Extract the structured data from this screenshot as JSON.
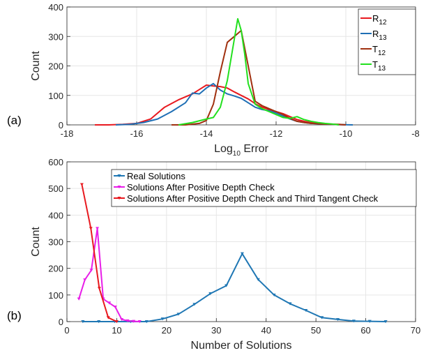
{
  "chart_data": [
    {
      "type": "line",
      "panel_label": "(a)",
      "xlabel": {
        "main": "Log",
        "sub": "10",
        "rest": " Error"
      },
      "ylabel": "Count",
      "xlim": [
        -18,
        -8
      ],
      "ylim": [
        0,
        400
      ],
      "xticks": [
        -18,
        -16,
        -14,
        -12,
        -10,
        -8
      ],
      "yticks": [
        0,
        100,
        200,
        300,
        400
      ],
      "grid": true,
      "legend_placement": "top-right",
      "series": [
        {
          "name": "R",
          "sub": "12",
          "color": "#e8191f",
          "x": [
            -17.2,
            -16.8,
            -16.4,
            -16.0,
            -15.6,
            -15.2,
            -14.8,
            -14.4,
            -14.2,
            -14.0,
            -13.8,
            -13.6,
            -13.4,
            -13.2,
            -13.0,
            -12.8,
            -12.6,
            -12.4,
            -12.2,
            -12.0,
            -11.8,
            -11.6,
            -11.4,
            -11.2,
            -11.0,
            -10.8,
            -10.6,
            -10.4,
            -10.2,
            -10.0
          ],
          "y": [
            0,
            0,
            2,
            5,
            20,
            60,
            85,
            105,
            120,
            135,
            132,
            130,
            125,
            112,
            100,
            88,
            72,
            60,
            52,
            45,
            38,
            28,
            18,
            12,
            8,
            4,
            3,
            2,
            1,
            0
          ]
        },
        {
          "name": "R",
          "sub": "13",
          "color": "#1f6fb5",
          "x": [
            -16.6,
            -16.2,
            -15.8,
            -15.4,
            -15.0,
            -14.6,
            -14.4,
            -14.2,
            -14.0,
            -13.8,
            -13.6,
            -13.4,
            -13.2,
            -13.0,
            -12.8,
            -12.6,
            -12.4,
            -12.2,
            -12.0,
            -11.8,
            -11.6,
            -11.4,
            -11.2,
            -11.0,
            -10.6,
            -10.2,
            -9.8
          ],
          "y": [
            0,
            2,
            8,
            20,
            45,
            75,
            108,
            105,
            125,
            140,
            118,
            105,
            98,
            90,
            75,
            60,
            52,
            48,
            40,
            30,
            20,
            12,
            8,
            5,
            3,
            1,
            0
          ]
        },
        {
          "name": "T",
          "sub": "12",
          "color": "#a0300f",
          "x": [
            -15.0,
            -14.6,
            -14.2,
            -14.0,
            -13.8,
            -13.6,
            -13.4,
            -13.2,
            -13.0,
            -12.8,
            -12.6,
            -12.4,
            -12.2,
            -12.0,
            -11.8,
            -11.6,
            -11.4,
            -11.2,
            -11.0,
            -10.6,
            -10.2,
            -10.0
          ],
          "y": [
            0,
            0,
            5,
            15,
            70,
            180,
            280,
            300,
            320,
            200,
            80,
            65,
            55,
            45,
            35,
            22,
            12,
            8,
            5,
            3,
            2,
            0
          ]
        },
        {
          "name": "T",
          "sub": "13",
          "color": "#22e01e",
          "x": [
            -14.8,
            -14.4,
            -14.0,
            -13.8,
            -13.6,
            -13.4,
            -13.2,
            -13.1,
            -13.0,
            -12.9,
            -12.8,
            -12.6,
            -12.4,
            -12.2,
            -12.0,
            -11.8,
            -11.6,
            -11.4,
            -11.2,
            -11.0,
            -10.8,
            -10.6,
            -10.4,
            -10.2
          ],
          "y": [
            0,
            8,
            20,
            25,
            60,
            150,
            290,
            360,
            320,
            240,
            140,
            70,
            55,
            45,
            35,
            25,
            22,
            28,
            18,
            12,
            8,
            5,
            3,
            0
          ]
        }
      ]
    },
    {
      "type": "line",
      "panel_label": "(b)",
      "xlabel": "Number of Solutions",
      "ylabel": "Count",
      "xlim": [
        0,
        70
      ],
      "ylim": [
        0,
        600
      ],
      "xticks": [
        0,
        10,
        20,
        30,
        40,
        50,
        60,
        70
      ],
      "yticks": [
        0,
        100,
        200,
        300,
        400,
        500,
        600
      ],
      "grid": true,
      "legend_placement": "top-right",
      "series": [
        {
          "name": "Real Solutions",
          "color": "#1f77b4",
          "x": [
            3.2,
            6.4,
            9.6,
            12.8,
            16.0,
            19.2,
            22.4,
            25.6,
            28.8,
            32.0,
            35.2,
            38.4,
            41.6,
            44.8,
            48.0,
            51.2,
            54.4,
            57.6,
            60.8,
            64.0
          ],
          "y": [
            0,
            0,
            0,
            0,
            0,
            10,
            28,
            65,
            105,
            135,
            255,
            158,
            100,
            67,
            42,
            15,
            8,
            2,
            1,
            0
          ]
        },
        {
          "name": "Solutions After Positive Depth Check",
          "color": "#e81ee8",
          "x": [
            2.4,
            3.6,
            4.9,
            6.1,
            7.3,
            8.5,
            9.7,
            11.0,
            12.2,
            13.4,
            14.6
          ],
          "y": [
            85,
            157,
            193,
            350,
            85,
            70,
            55,
            8,
            3,
            1,
            0
          ]
        },
        {
          "name": "Solutions After Positive Depth Check and Third Tangent Check",
          "color": "#e8191f",
          "x": [
            3.0,
            4.8,
            6.5,
            8.3,
            10.0
          ],
          "y": [
            515,
            350,
            125,
            15,
            0
          ]
        }
      ]
    }
  ]
}
